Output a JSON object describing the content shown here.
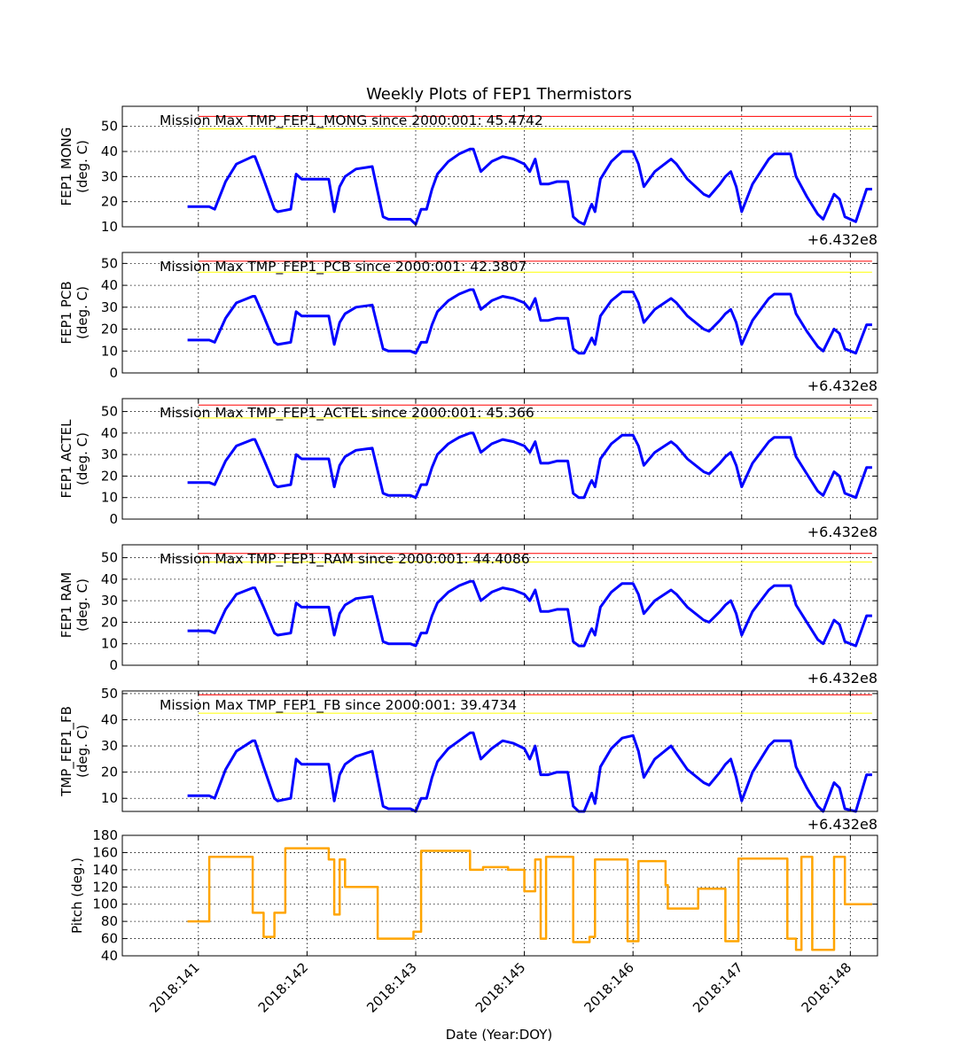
{
  "figure": {
    "title": "Weekly Plots of FEP1 Thermistors",
    "xlabel": "Date (Year:DOY)",
    "offset_label": "+6.432e8",
    "x_ticks": [
      "2018:141",
      "2018:142",
      "2018:143",
      "2018:145",
      "2018:146",
      "2018:147",
      "2018:148"
    ],
    "colors": {
      "data": "#0000ff",
      "pitch": "#ffa500",
      "red_limit": "#ff0000",
      "yellow_limit": "#ffff00",
      "grid": "#000000"
    }
  },
  "chart_data": [
    {
      "type": "line",
      "ylabel": [
        "FEP1 MONG",
        "(deg. C)"
      ],
      "annotation": "Mission Max TMP_FEP1_MONG since 2000:001: 45.4742",
      "ylim": [
        10,
        58
      ],
      "yticks": [
        10,
        20,
        30,
        40,
        50
      ],
      "red_limit": 54,
      "yellow_limit": 49,
      "x": [
        0.9,
        1.1,
        1.15,
        1.25,
        1.35,
        1.5,
        1.52,
        1.6,
        1.7,
        1.73,
        1.85,
        1.9,
        1.95,
        2.0,
        2.1,
        2.2,
        2.25,
        2.3,
        2.35,
        2.45,
        2.6,
        2.7,
        2.75,
        2.82,
        2.95,
        3.0,
        3.05,
        3.1,
        3.15,
        3.2,
        3.3,
        3.4,
        3.5,
        3.53,
        3.6,
        3.7,
        3.8,
        3.9,
        4.0,
        4.05,
        4.1,
        4.15,
        4.22,
        4.3,
        4.4,
        4.45,
        4.5,
        4.55,
        4.6,
        4.62,
        4.65,
        4.7,
        4.8,
        4.9,
        5.0,
        5.05,
        5.1,
        5.2,
        5.35,
        5.4,
        5.5,
        5.65,
        5.7,
        5.8,
        5.85,
        5.9,
        5.95,
        6.0,
        6.1,
        6.25,
        6.3,
        6.45,
        6.5,
        6.6,
        6.7,
        6.75,
        6.85,
        6.9,
        6.95,
        7.05,
        7.15,
        7.2
      ],
      "y": [
        18,
        18,
        17,
        28,
        35,
        38,
        38,
        29,
        17,
        16,
        17,
        31,
        29,
        29,
        29,
        29,
        16,
        26,
        30,
        33,
        34,
        14,
        13,
        13,
        13,
        11,
        17,
        17,
        25,
        31,
        36,
        39,
        41,
        41,
        32,
        36,
        38,
        37,
        35,
        32,
        37,
        27,
        27,
        28,
        28,
        14,
        12,
        11,
        17,
        19,
        16,
        29,
        36,
        40,
        40,
        35,
        26,
        32,
        37,
        35,
        29,
        23,
        22,
        27,
        30,
        32,
        26,
        16,
        27,
        37,
        39,
        39,
        30,
        22,
        15,
        13,
        23,
        21,
        14,
        12,
        25,
        25
      ]
    },
    {
      "type": "line",
      "ylabel": [
        "FEP1 PCB",
        "(deg. C)"
      ],
      "annotation": "Mission Max TMP_FEP1_PCB since 2000:001: 42.3807",
      "ylim": [
        0,
        55
      ],
      "yticks": [
        0,
        10,
        20,
        30,
        40,
        50
      ],
      "red_limit": 51,
      "yellow_limit": 46,
      "x": [
        0.9,
        1.1,
        1.15,
        1.25,
        1.35,
        1.5,
        1.52,
        1.6,
        1.7,
        1.73,
        1.85,
        1.9,
        1.95,
        2.0,
        2.1,
        2.2,
        2.25,
        2.3,
        2.35,
        2.45,
        2.6,
        2.7,
        2.75,
        2.82,
        2.95,
        3.0,
        3.05,
        3.1,
        3.15,
        3.2,
        3.3,
        3.4,
        3.5,
        3.53,
        3.6,
        3.7,
        3.8,
        3.9,
        4.0,
        4.05,
        4.1,
        4.15,
        4.22,
        4.3,
        4.4,
        4.45,
        4.5,
        4.55,
        4.6,
        4.62,
        4.65,
        4.7,
        4.8,
        4.9,
        5.0,
        5.05,
        5.1,
        5.2,
        5.35,
        5.4,
        5.5,
        5.65,
        5.7,
        5.8,
        5.85,
        5.9,
        5.95,
        6.0,
        6.1,
        6.25,
        6.3,
        6.45,
        6.5,
        6.6,
        6.7,
        6.75,
        6.85,
        6.9,
        6.95,
        7.05,
        7.15,
        7.2
      ],
      "y": [
        15,
        15,
        14,
        25,
        32,
        35,
        35,
        26,
        14,
        13,
        14,
        28,
        26,
        26,
        26,
        26,
        13,
        23,
        27,
        30,
        31,
        11,
        10,
        10,
        10,
        9,
        14,
        14,
        22,
        28,
        33,
        36,
        38,
        38,
        29,
        33,
        35,
        34,
        32,
        29,
        34,
        24,
        24,
        25,
        25,
        11,
        9,
        9,
        14,
        16,
        13,
        26,
        33,
        37,
        37,
        32,
        23,
        29,
        34,
        32,
        26,
        20,
        19,
        24,
        27,
        29,
        23,
        13,
        24,
        34,
        36,
        36,
        27,
        19,
        12,
        10,
        20,
        18,
        11,
        9,
        22,
        22
      ]
    },
    {
      "type": "line",
      "ylabel": [
        "FEP1 ACTEL",
        "(deg. C)"
      ],
      "annotation": "Mission Max TMP_FEP1_ACTEL since 2000:001: 45.366",
      "ylim": [
        0,
        56
      ],
      "yticks": [
        0,
        10,
        20,
        30,
        40,
        50
      ],
      "red_limit": 53,
      "yellow_limit": 47,
      "x": [
        0.9,
        1.1,
        1.15,
        1.25,
        1.35,
        1.5,
        1.52,
        1.6,
        1.7,
        1.73,
        1.85,
        1.9,
        1.95,
        2.0,
        2.1,
        2.2,
        2.25,
        2.3,
        2.35,
        2.45,
        2.6,
        2.7,
        2.75,
        2.82,
        2.95,
        3.0,
        3.05,
        3.1,
        3.15,
        3.2,
        3.3,
        3.4,
        3.5,
        3.53,
        3.6,
        3.7,
        3.8,
        3.9,
        4.0,
        4.05,
        4.1,
        4.15,
        4.22,
        4.3,
        4.4,
        4.45,
        4.5,
        4.55,
        4.6,
        4.62,
        4.65,
        4.7,
        4.8,
        4.9,
        5.0,
        5.05,
        5.1,
        5.2,
        5.35,
        5.4,
        5.5,
        5.65,
        5.7,
        5.8,
        5.85,
        5.9,
        5.95,
        6.0,
        6.1,
        6.25,
        6.3,
        6.45,
        6.5,
        6.6,
        6.7,
        6.75,
        6.85,
        6.9,
        6.95,
        7.05,
        7.15,
        7.2
      ],
      "y": [
        17,
        17,
        16,
        27,
        34,
        37,
        37,
        28,
        16,
        15,
        16,
        30,
        28,
        28,
        28,
        28,
        15,
        25,
        29,
        32,
        33,
        12,
        11,
        11,
        11,
        10,
        16,
        16,
        24,
        30,
        35,
        38,
        40,
        40,
        31,
        35,
        37,
        36,
        34,
        31,
        36,
        26,
        26,
        27,
        27,
        12,
        10,
        10,
        16,
        18,
        15,
        28,
        35,
        39,
        39,
        34,
        25,
        31,
        36,
        34,
        28,
        22,
        21,
        26,
        29,
        31,
        25,
        15,
        26,
        36,
        38,
        38,
        29,
        21,
        13,
        11,
        22,
        20,
        12,
        10,
        24,
        24
      ]
    },
    {
      "type": "line",
      "ylabel": [
        "FEP1 RAM",
        "(deg. C)"
      ],
      "annotation": "Mission Max TMP_FEP1_RAM since 2000:001: 44.4086",
      "ylim": [
        0,
        56
      ],
      "yticks": [
        0,
        10,
        20,
        30,
        40,
        50
      ],
      "red_limit": 52,
      "yellow_limit": 48,
      "x": [
        0.9,
        1.1,
        1.15,
        1.25,
        1.35,
        1.5,
        1.52,
        1.6,
        1.7,
        1.73,
        1.85,
        1.9,
        1.95,
        2.0,
        2.1,
        2.2,
        2.25,
        2.3,
        2.35,
        2.45,
        2.6,
        2.7,
        2.75,
        2.82,
        2.95,
        3.0,
        3.05,
        3.1,
        3.15,
        3.2,
        3.3,
        3.4,
        3.5,
        3.53,
        3.6,
        3.7,
        3.8,
        3.9,
        4.0,
        4.05,
        4.1,
        4.15,
        4.22,
        4.3,
        4.4,
        4.45,
        4.5,
        4.55,
        4.6,
        4.62,
        4.65,
        4.7,
        4.8,
        4.9,
        5.0,
        5.05,
        5.1,
        5.2,
        5.35,
        5.4,
        5.5,
        5.65,
        5.7,
        5.8,
        5.85,
        5.9,
        5.95,
        6.0,
        6.1,
        6.25,
        6.3,
        6.45,
        6.5,
        6.6,
        6.7,
        6.75,
        6.85,
        6.9,
        6.95,
        7.05,
        7.15,
        7.2
      ],
      "y": [
        16,
        16,
        15,
        26,
        33,
        36,
        36,
        27,
        15,
        14,
        15,
        29,
        27,
        27,
        27,
        27,
        14,
        24,
        28,
        31,
        32,
        11,
        10,
        10,
        10,
        9,
        15,
        15,
        23,
        29,
        34,
        37,
        39,
        39,
        30,
        34,
        36,
        35,
        33,
        30,
        35,
        25,
        25,
        26,
        26,
        11,
        9,
        9,
        15,
        17,
        14,
        27,
        34,
        38,
        38,
        33,
        24,
        30,
        35,
        33,
        27,
        21,
        20,
        25,
        28,
        30,
        24,
        14,
        25,
        35,
        37,
        37,
        28,
        20,
        12,
        10,
        21,
        19,
        11,
        9,
        23,
        23
      ]
    },
    {
      "type": "line",
      "ylabel": [
        "TMP_FEP1_FB",
        "(deg. C)"
      ],
      "annotation": "Mission Max TMP_FEP1_FB since 2000:001: 39.4734",
      "ylim": [
        5,
        51
      ],
      "yticks": [
        10,
        20,
        30,
        40,
        50
      ],
      "red_limit": 49.5,
      "yellow_limit": 42.5,
      "x": [
        0.9,
        1.1,
        1.15,
        1.25,
        1.35,
        1.5,
        1.52,
        1.6,
        1.7,
        1.73,
        1.85,
        1.9,
        1.95,
        2.0,
        2.1,
        2.2,
        2.25,
        2.3,
        2.35,
        2.45,
        2.6,
        2.7,
        2.75,
        2.82,
        2.95,
        3.0,
        3.05,
        3.1,
        3.15,
        3.2,
        3.3,
        3.4,
        3.5,
        3.53,
        3.6,
        3.7,
        3.8,
        3.9,
        4.0,
        4.05,
        4.1,
        4.15,
        4.22,
        4.3,
        4.4,
        4.45,
        4.5,
        4.55,
        4.6,
        4.62,
        4.65,
        4.7,
        4.8,
        4.9,
        5.0,
        5.05,
        5.1,
        5.2,
        5.35,
        5.4,
        5.5,
        5.65,
        5.7,
        5.8,
        5.85,
        5.9,
        5.95,
        6.0,
        6.1,
        6.25,
        6.3,
        6.45,
        6.5,
        6.6,
        6.7,
        6.75,
        6.85,
        6.9,
        6.95,
        7.05,
        7.15,
        7.2
      ],
      "y": [
        11,
        11,
        10,
        21,
        28,
        32,
        32,
        22,
        10,
        9,
        10,
        25,
        23,
        23,
        23,
        23,
        9,
        19,
        23,
        26,
        28,
        7,
        6,
        6,
        6,
        5,
        10,
        10,
        18,
        24,
        29,
        32,
        35,
        35,
        25,
        29,
        32,
        31,
        29,
        25,
        30,
        19,
        19,
        20,
        20,
        7,
        5,
        5,
        10,
        12,
        8,
        22,
        29,
        33,
        34,
        28,
        18,
        25,
        30,
        27,
        21,
        16,
        15,
        20,
        23,
        25,
        18,
        9,
        20,
        30,
        32,
        32,
        22,
        14,
        7,
        5,
        16,
        14,
        6,
        5,
        19,
        19
      ]
    },
    {
      "type": "line",
      "ylabel": [
        "Pitch (deg.)"
      ],
      "ylim": [
        40,
        180
      ],
      "yticks": [
        40,
        60,
        80,
        100,
        120,
        140,
        160,
        180
      ],
      "x": [
        0.9,
        1.1,
        1.1,
        1.5,
        1.5,
        1.6,
        1.6,
        1.7,
        1.7,
        1.8,
        1.8,
        1.85,
        1.85,
        2.2,
        2.2,
        2.25,
        2.25,
        2.3,
        2.3,
        2.35,
        2.35,
        2.4,
        2.4,
        2.65,
        2.65,
        2.98,
        2.98,
        3.05,
        3.05,
        3.5,
        3.5,
        3.62,
        3.62,
        3.85,
        3.85,
        4.0,
        4.0,
        4.1,
        4.1,
        4.15,
        4.15,
        4.2,
        4.2,
        4.22,
        4.22,
        4.45,
        4.45,
        4.6,
        4.6,
        4.65,
        4.65,
        4.95,
        4.95,
        5.05,
        5.05,
        5.3,
        5.3,
        5.32,
        5.32,
        5.6,
        5.6,
        5.85,
        5.85,
        5.97,
        5.97,
        6.0,
        6.0,
        6.42,
        6.42,
        6.5,
        6.5,
        6.55,
        6.55,
        6.65,
        6.65,
        6.75,
        6.75,
        6.85,
        6.85,
        6.95,
        6.95,
        7.0,
        7.0,
        7.2
      ],
      "y": [
        80,
        80,
        155,
        155,
        90,
        90,
        62,
        62,
        90,
        90,
        165,
        165,
        165,
        165,
        152,
        152,
        88,
        88,
        152,
        152,
        120,
        120,
        120,
        120,
        60,
        60,
        68,
        68,
        162,
        162,
        140,
        140,
        143,
        143,
        140,
        140,
        115,
        115,
        152,
        152,
        60,
        60,
        155,
        155,
        155,
        155,
        56,
        56,
        62,
        62,
        152,
        152,
        57,
        57,
        150,
        150,
        122,
        122,
        95,
        95,
        118,
        118,
        57,
        57,
        153,
        153,
        153,
        153,
        60,
        60,
        47,
        47,
        155,
        155,
        47,
        47,
        47,
        47,
        155,
        155,
        100,
        100,
        100,
        100
      ]
    }
  ]
}
